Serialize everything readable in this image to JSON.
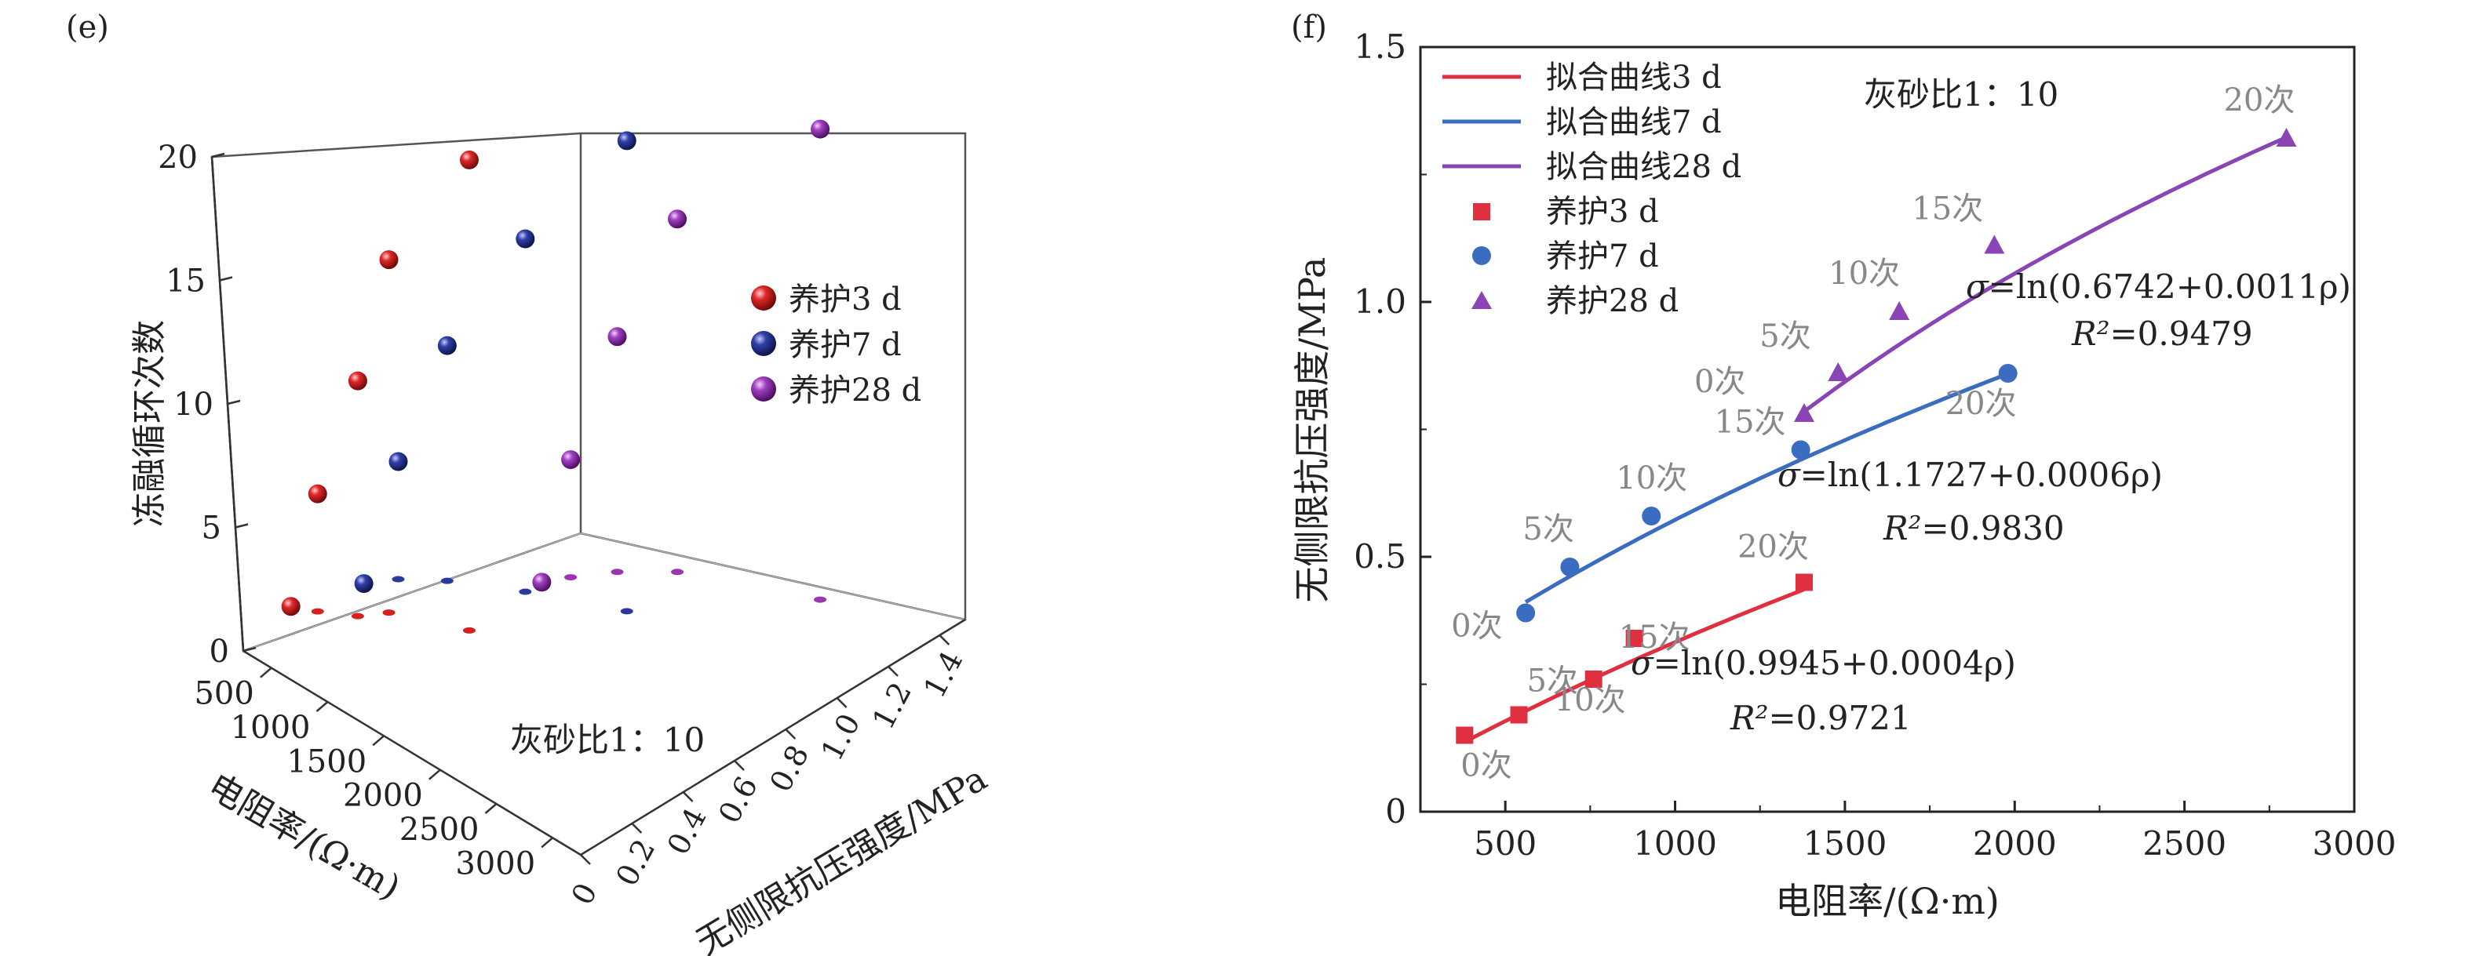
{
  "chart_data": [
    {
      "panel_label": "(e)",
      "type": "scatter",
      "title": "",
      "annotation": "灰砂比1：10",
      "xlabel": "电阻率/(Ω·m)",
      "ylabel": "无侧限抗压强度/MPa",
      "zlabel": "冻融循环次数",
      "x_ticks": [
        "500",
        "1000",
        "1500",
        "2000",
        "2500",
        "3000"
      ],
      "y_ticks": [
        "0",
        "0.2",
        "0.4",
        "0.6",
        "0.8",
        "1.0",
        "1.2",
        "1.4"
      ],
      "z_ticks": [
        "0",
        "5",
        "10",
        "15",
        "20"
      ],
      "xlim": [
        250,
        3250
      ],
      "ylim": [
        0,
        1.5
      ],
      "zlim": [
        0,
        20
      ],
      "legend_position": "right",
      "series": [
        {
          "name": "养护3 d",
          "color": "#d62020",
          "x": [
            380,
            540,
            760,
            880,
            1380
          ],
          "y": [
            0.15,
            0.19,
            0.26,
            0.34,
            0.45
          ],
          "z": [
            0,
            5,
            10,
            15,
            20
          ]
        },
        {
          "name": "养护7 d",
          "color": "#2a3a9a",
          "x": [
            560,
            690,
            930,
            1370,
            1980
          ],
          "y": [
            0.39,
            0.48,
            0.58,
            0.71,
            0.86
          ],
          "z": [
            0,
            5,
            10,
            15,
            20
          ]
        },
        {
          "name": "养护28 d",
          "color": "#9b35b0",
          "x": [
            1380,
            1480,
            1660,
            1940,
            2800
          ],
          "y": [
            0.78,
            0.86,
            0.98,
            1.11,
            1.32
          ],
          "z": [
            0,
            5,
            10,
            15,
            20
          ]
        }
      ]
    },
    {
      "panel_label": "(f)",
      "type": "scatter",
      "title": "",
      "annotation": "灰砂比1：10",
      "xlabel": "电阻率/(Ω·m)",
      "ylabel": "无侧限抗压强度/MPa",
      "x_ticks": [
        "500",
        "1000",
        "1500",
        "2000",
        "2500",
        "3000"
      ],
      "y_ticks": [
        "0",
        "0.5",
        "1.0",
        "1.5"
      ],
      "xlim": [
        250,
        3000
      ],
      "ylim": [
        0,
        1.5
      ],
      "legend_position": "top-left",
      "legend": [
        "拟合曲线3 d",
        "拟合曲线7 d",
        "拟合曲线28 d",
        "养护3 d",
        "养护7 d",
        "养护28 d"
      ],
      "series": [
        {
          "name": "养护3 d",
          "marker": "square",
          "color": "#e03040",
          "x": [
            380,
            540,
            760,
            880,
            1380
          ],
          "y": [
            0.15,
            0.19,
            0.26,
            0.34,
            0.45
          ],
          "point_labels": [
            "0次",
            "5次",
            "10次",
            "15次",
            "20次"
          ],
          "fit": {
            "name": "拟合曲线3 d",
            "a": 0.9945,
            "b": 0.0004,
            "x_range": [
              380,
              1380
            ],
            "equation_prefix": "σ",
            "equation_body": "=ln(0.9945+0.0004ρ)",
            "r2_prefix": "R²",
            "r2_value": "=0.9721"
          }
        },
        {
          "name": "养护7 d",
          "marker": "circle",
          "color": "#3a6cc0",
          "x": [
            560,
            690,
            930,
            1370,
            1980
          ],
          "y": [
            0.39,
            0.48,
            0.58,
            0.71,
            0.86
          ],
          "point_labels": [
            "0次",
            "5次",
            "10次",
            "15次",
            "20次"
          ],
          "fit": {
            "name": "拟合曲线7 d",
            "a": 1.1727,
            "b": 0.0006,
            "x_range": [
              560,
              1980
            ],
            "equation_prefix": "σ",
            "equation_body": "=ln(1.1727+0.0006ρ)",
            "r2_prefix": "R²",
            "r2_value": "=0.9830"
          }
        },
        {
          "name": "养护28 d",
          "marker": "triangle",
          "color": "#8a45b5",
          "x": [
            1380,
            1480,
            1660,
            1940,
            2800
          ],
          "y": [
            0.78,
            0.86,
            0.98,
            1.11,
            1.32
          ],
          "point_labels": [
            "0次",
            "5次",
            "10次",
            "15次",
            "20次"
          ],
          "fit": {
            "name": "拟合曲线28 d",
            "a": 0.6742,
            "b": 0.0011,
            "x_range": [
              1380,
              2800
            ],
            "equation_prefix": "σ",
            "equation_body": "=ln(0.6742+0.0011ρ)",
            "r2_prefix": "R²",
            "r2_value": "=0.9479"
          }
        }
      ]
    }
  ]
}
